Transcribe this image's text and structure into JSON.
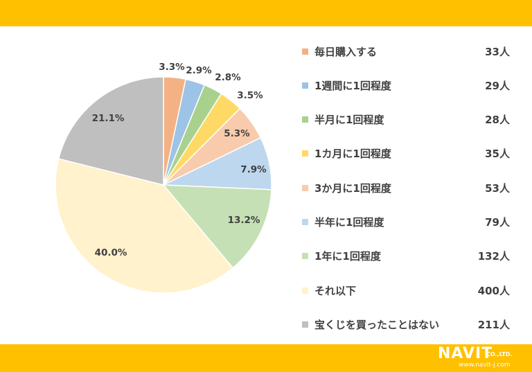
{
  "chart_data": {
    "type": "pie",
    "start_angle_deg": 0,
    "direction": "clockwise",
    "slices": [
      {
        "label": "毎日購入する",
        "count_label": "33人",
        "value": 33,
        "percent_label": "3.3%",
        "color": "#F4B183"
      },
      {
        "label": "1週間に1回程度",
        "count_label": "29人",
        "value": 29,
        "percent_label": "2.9%",
        "color": "#9DC3E6"
      },
      {
        "label": "半月に1回程度",
        "count_label": "28人",
        "value": 28,
        "percent_label": "2.8%",
        "color": "#A9D18E"
      },
      {
        "label": "1カ月に1回程度",
        "count_label": "35人",
        "value": 35,
        "percent_label": "3.5%",
        "color": "#FFD966"
      },
      {
        "label": "3か月に1回程度",
        "count_label": "53人",
        "value": 53,
        "percent_label": "5.3%",
        "color": "#F8CBAD"
      },
      {
        "label": "半年に1回程度",
        "count_label": "79人",
        "value": 79,
        "percent_label": "7.9%",
        "color": "#BDD7EE"
      },
      {
        "label": "1年に1回程度",
        "count_label": "132人",
        "value": 132,
        "percent_label": "13.2%",
        "color": "#C5E0B4"
      },
      {
        "label": "それ以下",
        "count_label": "400人",
        "value": 400,
        "percent_label": "40.0%",
        "color": "#FFF2CC"
      },
      {
        "label": "宝くじを買ったことはない",
        "count_label": "211人",
        "value": 211,
        "percent_label": "21.1%",
        "color": "#BFBFBF"
      }
    ]
  },
  "branding": {
    "name": "NAVIT",
    "suffix": "CO.,LTD.",
    "url": "www.navit-j.com"
  },
  "colors": {
    "band": "#FFC000",
    "text": "#404040"
  }
}
